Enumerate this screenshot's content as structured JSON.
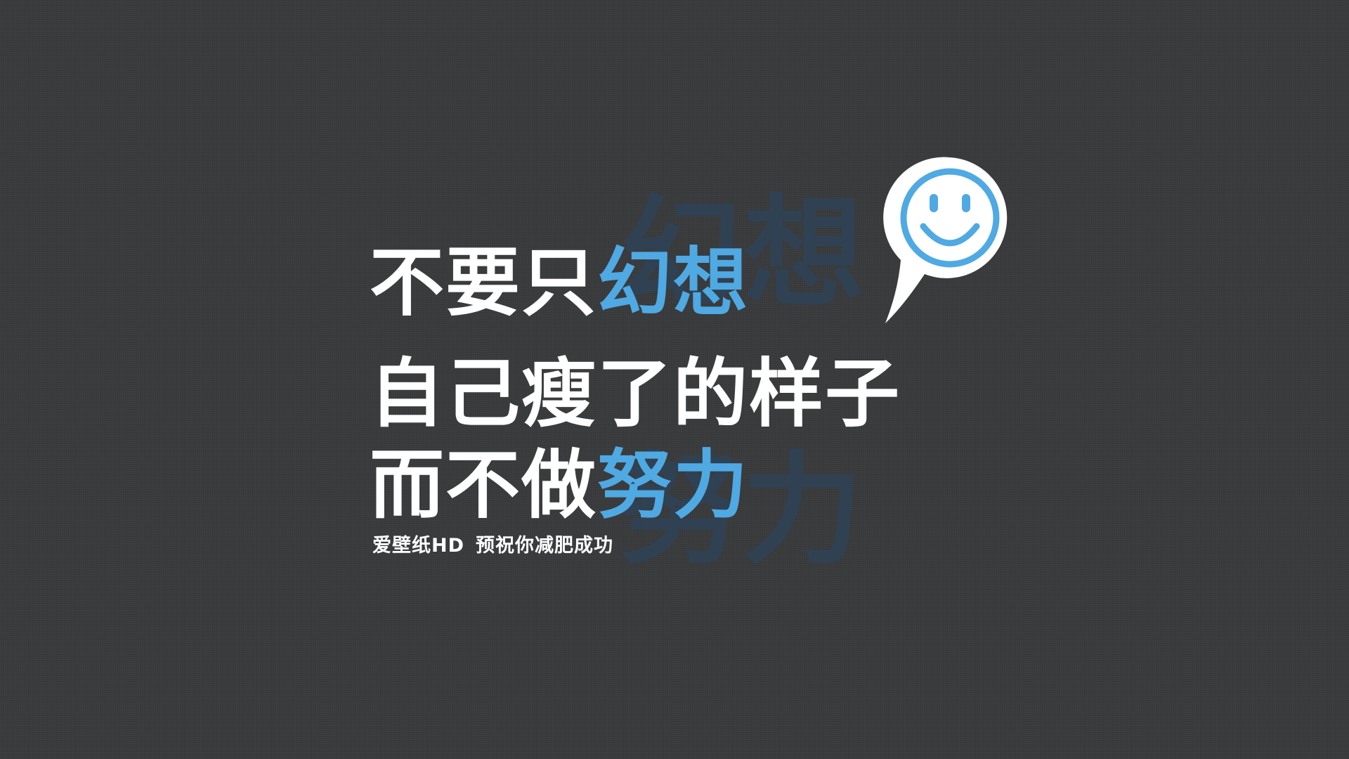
{
  "headline": {
    "line1_plain": "不要只",
    "line1_accent": "幻想",
    "line2": "自己瘦了的样子",
    "line3_plain": "而不做",
    "line3_accent": "努力"
  },
  "ghost": {
    "top": "幻想",
    "bottom": "努力"
  },
  "footnote": {
    "brand": "爱壁纸HD",
    "wish": "预祝你减肥成功"
  },
  "icons": {
    "pin": "smiley-location-pin-icon"
  },
  "colors": {
    "background": "#3a3b3d",
    "text": "#ffffff",
    "accent": "#4fa9e3",
    "ghost": "#2f4255"
  }
}
